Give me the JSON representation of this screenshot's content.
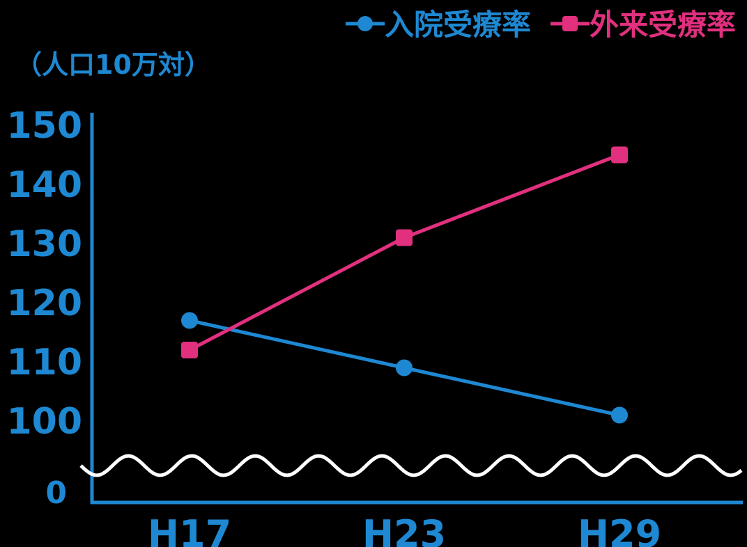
{
  "colors": {
    "background": "#000000",
    "axis": "#1E88D2",
    "break": "#FFFFFF",
    "inpatient": "#1E88D2",
    "outpatient": "#E0307E"
  },
  "chart_data": {
    "type": "line",
    "unit_label": "（人口10万対）",
    "categories": [
      "H17",
      "H23",
      "H29"
    ],
    "y_ticks": [
      "150",
      "140",
      "130",
      "120",
      "110",
      "100",
      "0"
    ],
    "ylim": [
      100,
      150
    ],
    "axis_break": true,
    "grid": false,
    "legend_position": "top-right",
    "series": [
      {
        "name": "入院受療率",
        "color_key": "inpatient",
        "values": [
          117,
          109,
          101
        ]
      },
      {
        "name": "外来受療率",
        "color_key": "outpatient",
        "values": [
          112,
          131,
          145
        ]
      }
    ]
  }
}
